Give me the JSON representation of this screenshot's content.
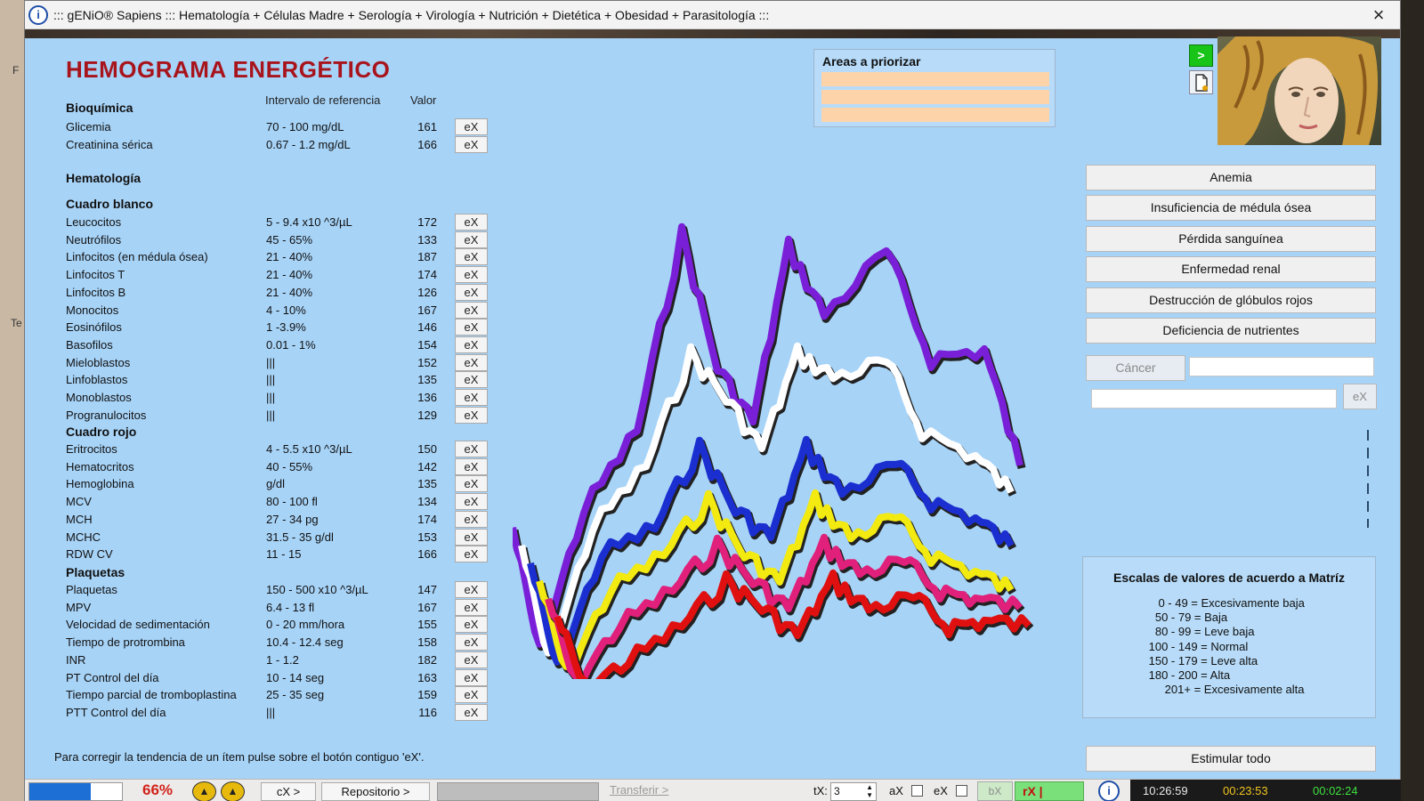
{
  "window": {
    "title": "::: gENiO® Sapiens ::: Hematología + Células Madre + Serología + Virología + Nutrición + Dietética + Obesidad + Parasitología :::",
    "close_icon": "×"
  },
  "desktop_fragments": [
    "F",
    "Te"
  ],
  "main": {
    "title": "HEMOGRAMA ENERGÉTICO",
    "header_ref": "Intervalo de referencia",
    "header_val": "Valor",
    "ex_label": "eX",
    "sections": {
      "bioquimica": "Bioquímica",
      "hematologia": "Hematología",
      "cuadro_blanco": "Cuadro blanco",
      "cuadro_rojo": "Cuadro rojo",
      "plaquetas": "Plaquetas"
    },
    "rows_bioquimica": [
      {
        "label": "Glicemia",
        "ref": "70 - 100 mg/dL",
        "value": "161"
      },
      {
        "label": "Creatinina sérica",
        "ref": "0.67 - 1.2 mg/dL",
        "value": "166"
      }
    ],
    "rows_blanco": [
      {
        "label": "Leucocitos",
        "ref": "5 - 9.4 x10 ^3/µL",
        "value": "172"
      },
      {
        "label": "Neutrófilos",
        "ref": "45 - 65%",
        "value": "133"
      },
      {
        "label": "Linfocitos (en médula ósea)",
        "ref": "21 - 40%",
        "value": "187"
      },
      {
        "label": "Linfocitos T",
        "ref": "21 - 40%",
        "value": "174"
      },
      {
        "label": "Linfocitos B",
        "ref": "21 - 40%",
        "value": "126"
      },
      {
        "label": "Monocitos",
        "ref": "4 - 10%",
        "value": "167"
      },
      {
        "label": "Eosinófilos",
        "ref": "1 -3.9%",
        "value": "146"
      },
      {
        "label": "Basofilos",
        "ref": "0.01 - 1%",
        "value": "154"
      },
      {
        "label": "Mieloblastos",
        "ref": "|||",
        "value": "152"
      },
      {
        "label": "Linfoblastos",
        "ref": "|||",
        "value": "135"
      },
      {
        "label": "Monoblastos",
        "ref": "|||",
        "value": "136"
      },
      {
        "label": "Progranulocitos",
        "ref": "|||",
        "value": "129"
      }
    ],
    "rows_rojo": [
      {
        "label": "Eritrocitos",
        "ref": "4 - 5.5 x10 ^3/µL",
        "value": "150"
      },
      {
        "label": "Hematocritos",
        "ref": "40 - 55%",
        "value": "142"
      },
      {
        "label": "Hemoglobina",
        "ref": " g/dl",
        "value": "135"
      },
      {
        "label": "MCV",
        "ref": "80 - 100 fl",
        "value": "134"
      },
      {
        "label": "MCH",
        "ref": "27 - 34 pg",
        "value": "174"
      },
      {
        "label": "MCHC",
        "ref": "31.5 - 35 g/dl",
        "value": "153"
      },
      {
        "label": "RDW CV",
        "ref": "11 - 15",
        "value": "166"
      }
    ],
    "rows_plaquetas": [
      {
        "label": "Plaquetas",
        "ref": "150 - 500 x10 ^3/µL",
        "value": "147"
      },
      {
        "label": "MPV",
        "ref": "6.4 - 13 fl",
        "value": "167"
      },
      {
        "label": "Velocidad de sedimentación",
        "ref": "0 - 20 mm/hora",
        "value": "155"
      },
      {
        "label": "Tiempo de protrombina",
        "ref": "10.4 - 12.4 seg",
        "value": "158"
      },
      {
        "label": "INR",
        "ref": "1 - 1.2",
        "value": "182"
      },
      {
        "label": "PT Control del día",
        "ref": "10 - 14 seg",
        "value": "163"
      },
      {
        "label": "Tiempo parcial de tromboplastina",
        "ref": "25 - 35 seg",
        "value": "159"
      },
      {
        "label": "PTT Control del día",
        "ref": "|||",
        "value": "116"
      }
    ],
    "note": "Para corregir la tendencia de un ítem pulse sobre el botón contiguo 'eX'."
  },
  "priority": {
    "title": "Areas a priorizar",
    "bar_color": "#fdd4aa"
  },
  "side": {
    "go_label": ">",
    "doc_icon": "document-icon",
    "buttons": [
      "Anemia",
      "Insuficiencia de médula ósea",
      "Pérdida sanguínea",
      "Enfermedad renal",
      "Destrucción de glóbulos rojos",
      "Deficiencia de nutrientes"
    ],
    "cancer_label": "Cáncer",
    "free_ex_label": "eX",
    "scales": {
      "title": "Escalas de valores de acuerdo a Matríz",
      "lines": [
        "    0 - 49 = Excesivamente baja",
        "   50 - 79 = Baja",
        "   80 - 99 = Leve baja",
        " 100 - 149 = Normal",
        " 150 - 179 = Leve alta",
        " 180 - 200 = Alta",
        "      201+ = Excesivamente alta"
      ]
    },
    "stimulate_label": "Estimular todo"
  },
  "statusbar": {
    "progress_fraction": 0.66,
    "progress_color": "#1d6fd6",
    "percent": "66%",
    "cx_label": "cX >",
    "repo_label": "Repositorio >",
    "transfer_label": "Transferir >",
    "tx_label": "tX:",
    "tx_value": "3",
    "ax_label": "aX",
    "ex_label": "eX",
    "bx_label": "bX",
    "rx_label": "rX |",
    "time_now": "10:26:59",
    "time_elapsed": "00:23:53",
    "time_other": "00:02:24"
  },
  "chart_colors": [
    "#7a1fd8",
    "#ffffff",
    "#1b2fd0",
    "#f2ea10",
    "#e0207a",
    "#e01010"
  ]
}
